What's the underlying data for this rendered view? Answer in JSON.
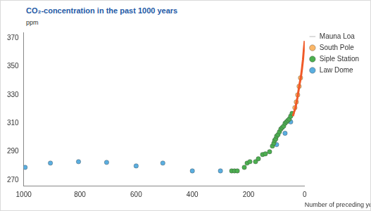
{
  "chart_data": {
    "type": "scatter",
    "title": "CO₂-concentration in the past 1000 years",
    "y_label": "ppm",
    "x_label": "Number of preceding years",
    "xlim": [
      1000,
      0
    ],
    "xticks": [
      1000,
      800,
      600,
      400,
      200,
      0
    ],
    "ylim": [
      266,
      374
    ],
    "yticks": [
      270,
      290,
      310,
      330,
      350,
      370
    ],
    "grid": false,
    "legend": "right",
    "series": [
      {
        "name": "Mauna Loa",
        "type": "line",
        "line_style": "solid",
        "marker": "none",
        "color": "#f05a28",
        "x": [
          42,
          38,
          34,
          30,
          26,
          22,
          18,
          14,
          10,
          6,
          3,
          0
        ],
        "values": [
          315,
          318,
          320,
          324,
          328,
          333,
          338,
          342,
          348,
          355,
          362,
          368
        ]
      },
      {
        "name": "South Pole",
        "type": "scatter",
        "marker": "circle",
        "color": "#fbb768",
        "x": [
          35,
          30,
          25,
          20,
          15
        ],
        "values": [
          321,
          325,
          330,
          336,
          342
        ]
      },
      {
        "name": "Siple Station",
        "type": "scatter",
        "marker": "circle",
        "color": "#4caf50",
        "x": [
          260,
          250,
          240,
          215,
          205,
          195,
          175,
          165,
          150,
          140,
          125,
          115,
          110,
          107,
          103,
          100,
          95,
          90,
          85,
          80,
          75,
          70,
          65,
          60,
          55,
          50,
          45
        ],
        "values": [
          276.5,
          276.5,
          276.5,
          279,
          282,
          283,
          283,
          285,
          288,
          288.5,
          290,
          294,
          296,
          298,
          299,
          301,
          302,
          304,
          306,
          307,
          308,
          310,
          311,
          312,
          313,
          315,
          317
        ]
      },
      {
        "name": "Law Dome",
        "type": "scatter",
        "marker": "circle",
        "color": "#5aaee0",
        "x": [
          995,
          905,
          805,
          705,
          600,
          505,
          400,
          300,
          100,
          70,
          50
        ],
        "values": [
          279,
          282,
          283,
          282.5,
          280,
          282,
          276.5,
          276.5,
          295,
          303,
          311
        ]
      }
    ]
  }
}
